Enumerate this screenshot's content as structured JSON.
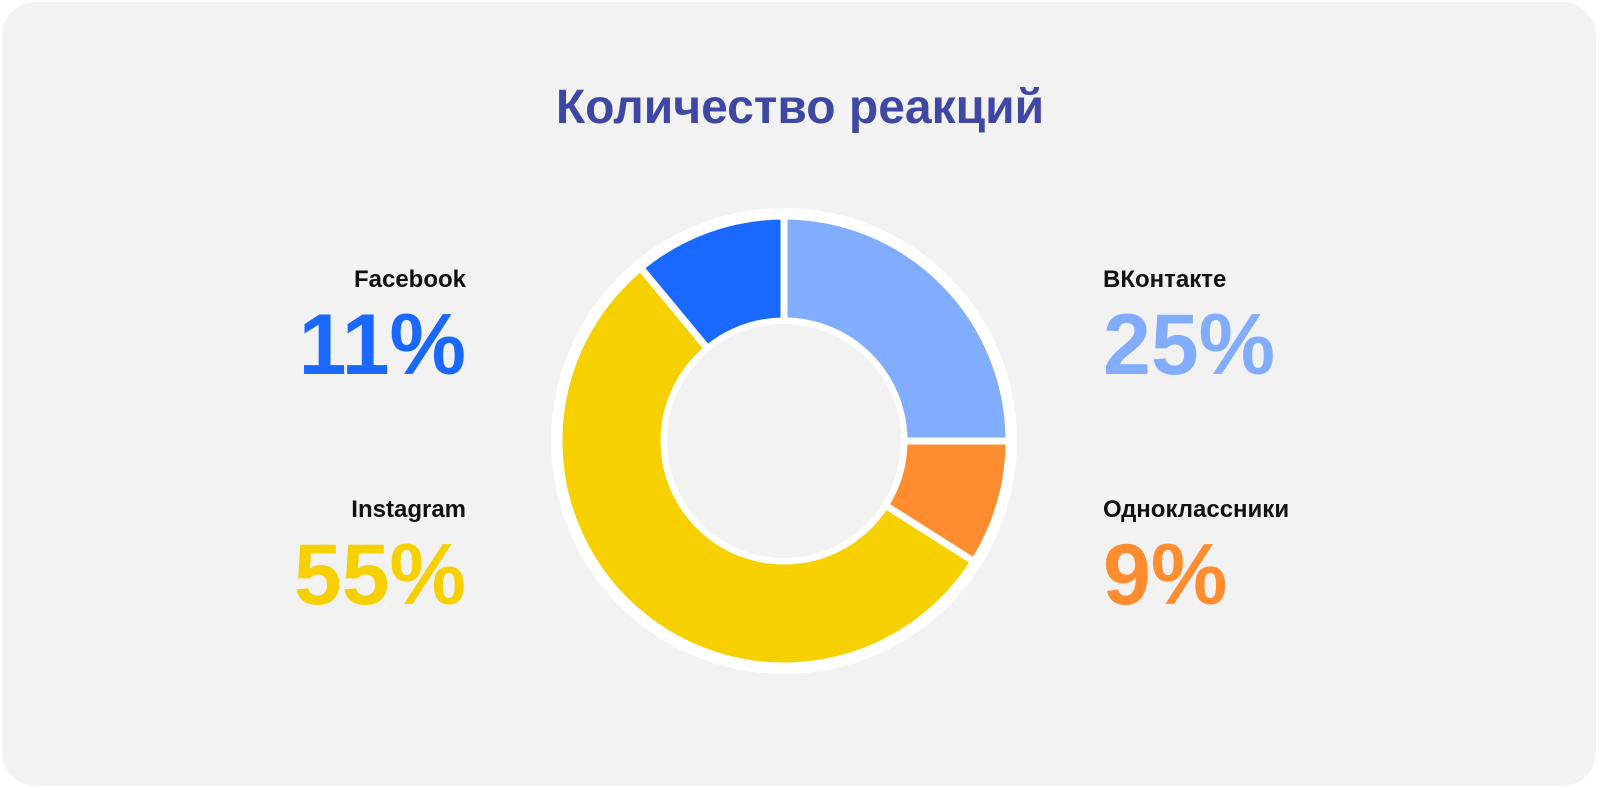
{
  "chart_data": {
    "type": "pie",
    "variant": "donut",
    "title": "Количество реакций",
    "slices": [
      {
        "label": "ВКонтакте",
        "value": 25,
        "display": "25%",
        "color": "#82adff"
      },
      {
        "label": "Одноклассники",
        "value": 9,
        "display": "9%",
        "color": "#ff8c2e"
      },
      {
        "label": "Instagram",
        "value": 55,
        "display": "55%",
        "color": "#f7d000"
      },
      {
        "label": "Facebook",
        "value": 11,
        "display": "11%",
        "color": "#1968ff"
      }
    ]
  }
}
